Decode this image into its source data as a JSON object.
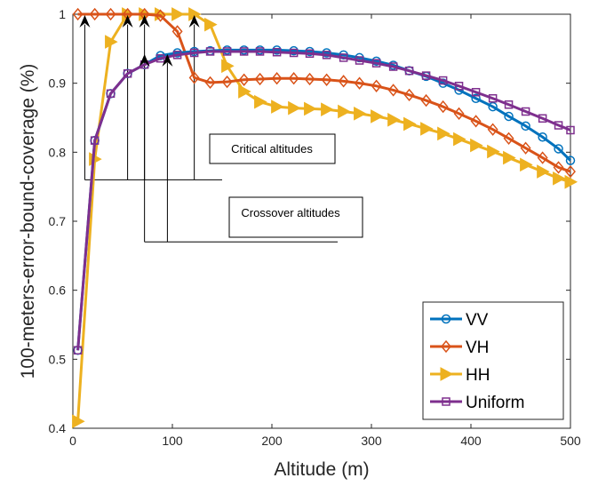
{
  "chart_data": {
    "type": "line",
    "xlabel": "Altitude (m)",
    "ylabel": "100-meters-error-bound-coverage (%)",
    "xlim": [
      0,
      500
    ],
    "ylim": [
      0.4,
      1.0
    ],
    "xticks": [
      0,
      100,
      200,
      300,
      400,
      500
    ],
    "yticks": [
      0.4,
      0.5,
      0.6,
      0.7,
      0.8,
      0.9,
      1.0
    ],
    "xtick_labels": [
      "0",
      "100",
      "200",
      "300",
      "400",
      "500"
    ],
    "ytick_labels": [
      "0.4",
      "0.5",
      "0.6",
      "0.7",
      "0.8",
      "0.9",
      "1"
    ],
    "legend_position": "bottom-right",
    "x": [
      5,
      22,
      38,
      55,
      72,
      88,
      105,
      122,
      138,
      155,
      172,
      188,
      205,
      222,
      238,
      255,
      272,
      288,
      305,
      322,
      338,
      355,
      372,
      388,
      405,
      422,
      438,
      455,
      472,
      488,
      500
    ],
    "series": [
      {
        "name": "VV",
        "color": "#0072BD",
        "marker": "circle",
        "values": [
          0.513,
          0.817,
          0.885,
          0.914,
          0.927,
          0.94,
          0.944,
          0.946,
          0.947,
          0.948,
          0.948,
          0.948,
          0.948,
          0.947,
          0.946,
          0.944,
          0.941,
          0.937,
          0.932,
          0.926,
          0.918,
          0.91,
          0.9,
          0.89,
          0.878,
          0.866,
          0.852,
          0.838,
          0.822,
          0.805,
          0.788
        ]
      },
      {
        "name": "VH",
        "color": "#D95319",
        "marker": "diamond",
        "values": [
          1.0,
          1.0,
          1.0,
          1.0,
          1.0,
          0.998,
          0.975,
          0.908,
          0.901,
          0.902,
          0.905,
          0.906,
          0.907,
          0.907,
          0.906,
          0.905,
          0.903,
          0.9,
          0.896,
          0.89,
          0.883,
          0.875,
          0.866,
          0.856,
          0.845,
          0.833,
          0.82,
          0.806,
          0.792,
          0.778,
          0.772
        ]
      },
      {
        "name": "HH",
        "color": "#EDB120",
        "marker": "triangle-right",
        "values": [
          0.41,
          0.79,
          0.96,
          1.0,
          1.0,
          1.0,
          1.0,
          1.0,
          0.985,
          0.925,
          0.888,
          0.873,
          0.866,
          0.864,
          0.863,
          0.862,
          0.859,
          0.856,
          0.852,
          0.847,
          0.841,
          0.834,
          0.827,
          0.819,
          0.81,
          0.801,
          0.792,
          0.782,
          0.772,
          0.762,
          0.757
        ]
      },
      {
        "name": "Uniform",
        "color": "#7E2F8E",
        "marker": "square",
        "values": [
          0.513,
          0.817,
          0.885,
          0.914,
          0.927,
          0.936,
          0.941,
          0.944,
          0.946,
          0.946,
          0.946,
          0.946,
          0.945,
          0.944,
          0.943,
          0.941,
          0.937,
          0.933,
          0.929,
          0.924,
          0.918,
          0.911,
          0.904,
          0.896,
          0.887,
          0.878,
          0.869,
          0.859,
          0.849,
          0.839,
          0.832
        ]
      }
    ],
    "annotations": [
      {
        "text": "Critical altitudes",
        "arrow_x": [
          12,
          55,
          72,
          122
        ],
        "group": "critical"
      },
      {
        "text": "Crossover altitudes",
        "arrow_x": [
          72,
          95
        ],
        "group": "crossover"
      }
    ]
  }
}
